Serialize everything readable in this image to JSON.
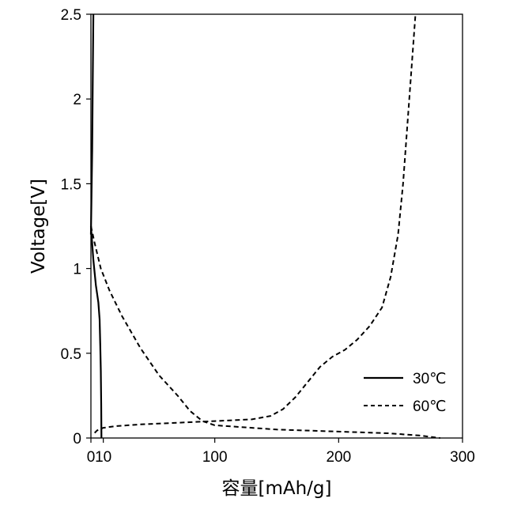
{
  "chart_data": {
    "type": "line",
    "xlabel": "容量[mAh/g]",
    "ylabel": "Voltage[V]",
    "xlim": [
      0,
      300
    ],
    "ylim": [
      0,
      2.5
    ],
    "x_ticks": [
      0,
      10,
      100,
      200,
      300
    ],
    "x_tick_labels": [
      "0",
      "10",
      "100",
      "200",
      "300"
    ],
    "y_ticks": [
      0,
      0.5,
      1,
      1.5,
      2,
      2.5
    ],
    "y_tick_labels": [
      "0",
      "0.5",
      "1",
      "1.5",
      "2",
      "2.5"
    ],
    "grid": false,
    "legend_position": "bottom-right",
    "series": [
      {
        "name": "30℃",
        "style": "solid",
        "color": "#000000",
        "segments": [
          [
            [
              0,
              1.25
            ],
            [
              2,
              1.05
            ],
            [
              4,
              0.9
            ],
            [
              6,
              0.8
            ],
            [
              7,
              0.7
            ],
            [
              7.5,
              0.55
            ],
            [
              8,
              0.4
            ],
            [
              8.3,
              0.2
            ],
            [
              8.5,
              0.0
            ]
          ],
          [
            [
              0,
              1.2
            ],
            [
              1,
              1.7
            ],
            [
              1.5,
              2.1
            ],
            [
              2,
              2.5
            ]
          ]
        ]
      },
      {
        "name": "60℃",
        "style": "dashed",
        "color": "#000000",
        "segments": [
          [
            [
              0,
              1.25
            ],
            [
              3,
              1.15
            ],
            [
              8,
              1.0
            ],
            [
              15,
              0.87
            ],
            [
              25,
              0.72
            ],
            [
              40,
              0.53
            ],
            [
              55,
              0.37
            ],
            [
              70,
              0.25
            ],
            [
              80,
              0.16
            ],
            [
              90,
              0.1
            ],
            [
              100,
              0.075
            ],
            [
              150,
              0.05
            ],
            [
              200,
              0.038
            ],
            [
              240,
              0.028
            ],
            [
              265,
              0.015
            ],
            [
              282,
              0.0
            ]
          ],
          [
            [
              3,
              0.03
            ],
            [
              5,
              0.045
            ],
            [
              10,
              0.06
            ],
            [
              20,
              0.07
            ],
            [
              40,
              0.08
            ],
            [
              70,
              0.09
            ],
            [
              100,
              0.1
            ],
            [
              130,
              0.11
            ],
            [
              145,
              0.13
            ],
            [
              155,
              0.17
            ],
            [
              165,
              0.24
            ],
            [
              175,
              0.33
            ],
            [
              185,
              0.42
            ],
            [
              195,
              0.48
            ],
            [
              205,
              0.52
            ],
            [
              215,
              0.58
            ],
            [
              225,
              0.66
            ],
            [
              235,
              0.77
            ],
            [
              242,
              0.95
            ],
            [
              248,
              1.2
            ],
            [
              252,
              1.5
            ],
            [
              256,
              1.9
            ],
            [
              259,
              2.2
            ],
            [
              262,
              2.5
            ]
          ]
        ]
      }
    ]
  }
}
